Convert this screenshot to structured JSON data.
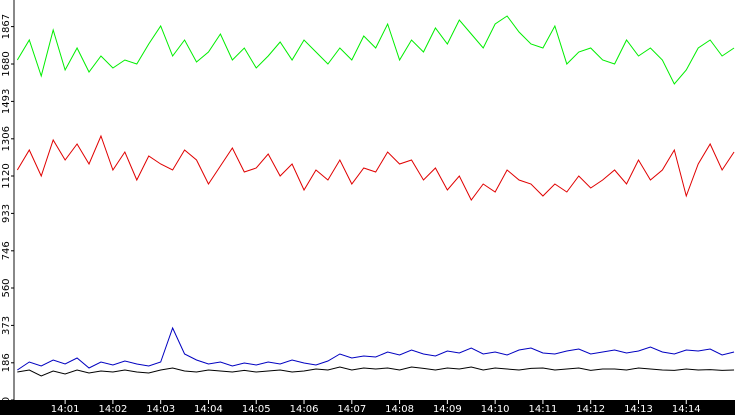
{
  "chart_data": {
    "type": "line",
    "x": [
      840,
      840.25,
      840.5,
      840.75,
      841,
      841.25,
      841.5,
      841.75,
      842,
      842.25,
      842.5,
      842.75,
      843,
      843.25,
      843.5,
      843.75,
      844,
      844.25,
      844.5,
      844.75,
      845,
      845.25,
      845.5,
      845.75,
      846,
      846.25,
      846.5,
      846.75,
      847,
      847.25,
      847.5,
      847.75,
      848,
      848.25,
      848.5,
      848.75,
      849,
      849.25,
      849.5,
      849.75,
      850,
      850.25,
      850.5,
      850.75,
      851,
      851.25,
      851.5,
      851.75,
      852,
      852.25,
      852.5,
      852.75,
      853,
      853.25,
      853.5,
      853.75,
      854,
      854.25,
      854.5,
      854.75,
      855
    ],
    "series": [
      {
        "color": "#00ee00",
        "values": [
          1700,
          1800,
          1620,
          1850,
          1650,
          1760,
          1640,
          1720,
          1660,
          1700,
          1680,
          1780,
          1870,
          1720,
          1800,
          1690,
          1740,
          1830,
          1700,
          1760,
          1660,
          1720,
          1790,
          1700,
          1800,
          1740,
          1680,
          1760,
          1700,
          1820,
          1760,
          1880,
          1700,
          1800,
          1740,
          1860,
          1780,
          1900,
          1830,
          1760,
          1880,
          1920,
          1840,
          1780,
          1760,
          1870,
          1680,
          1740,
          1760,
          1700,
          1680,
          1800,
          1720,
          1760,
          1700,
          1580,
          1650,
          1760,
          1800,
          1720,
          1760
        ]
      },
      {
        "color": "#e00000",
        "values": [
          1150,
          1250,
          1120,
          1300,
          1200,
          1280,
          1180,
          1320,
          1150,
          1240,
          1100,
          1220,
          1180,
          1150,
          1250,
          1200,
          1080,
          1170,
          1260,
          1140,
          1160,
          1230,
          1120,
          1180,
          1050,
          1150,
          1100,
          1200,
          1080,
          1160,
          1140,
          1240,
          1180,
          1200,
          1100,
          1160,
          1050,
          1120,
          1000,
          1080,
          1040,
          1150,
          1100,
          1080,
          1020,
          1080,
          1040,
          1120,
          1060,
          1100,
          1150,
          1080,
          1200,
          1100,
          1150,
          1250,
          1020,
          1180,
          1280,
          1150,
          1240
        ]
      },
      {
        "color": "#0000c0",
        "values": [
          150,
          190,
          170,
          200,
          180,
          210,
          160,
          190,
          175,
          195,
          180,
          170,
          190,
          360,
          230,
          200,
          180,
          190,
          170,
          185,
          175,
          190,
          180,
          200,
          185,
          175,
          195,
          230,
          210,
          220,
          215,
          240,
          225,
          250,
          230,
          220,
          245,
          235,
          260,
          230,
          240,
          225,
          250,
          260,
          235,
          230,
          245,
          255,
          230,
          240,
          250,
          235,
          245,
          265,
          240,
          230,
          250,
          245,
          255,
          225,
          240
        ]
      },
      {
        "color": "#000000",
        "values": [
          140,
          150,
          120,
          145,
          130,
          150,
          135,
          145,
          140,
          150,
          140,
          135,
          150,
          160,
          145,
          140,
          150,
          145,
          140,
          148,
          140,
          145,
          150,
          140,
          145,
          155,
          150,
          165,
          150,
          160,
          155,
          160,
          150,
          165,
          158,
          150,
          160,
          155,
          165,
          150,
          160,
          155,
          150,
          158,
          160,
          150,
          155,
          160,
          148,
          155,
          155,
          150,
          160,
          155,
          150,
          148,
          155,
          150,
          152,
          148,
          150
        ]
      }
    ],
    "xlim": [
      839.93,
      855.02
    ],
    "xticks": [
      {
        "value": 841,
        "label": "14:01"
      },
      {
        "value": 842,
        "label": "14:02"
      },
      {
        "value": 843,
        "label": "14:03"
      },
      {
        "value": 844,
        "label": "14:04"
      },
      {
        "value": 845,
        "label": "14:05"
      },
      {
        "value": 846,
        "label": "14:06"
      },
      {
        "value": 847,
        "label": "14:07"
      },
      {
        "value": 848,
        "label": "14:08"
      },
      {
        "value": 849,
        "label": "14:09"
      },
      {
        "value": 850,
        "label": "14:10"
      },
      {
        "value": 851,
        "label": "14:11"
      },
      {
        "value": 852,
        "label": "14:12"
      },
      {
        "value": 853,
        "label": "14:13"
      },
      {
        "value": 854,
        "label": "14:14"
      }
    ],
    "ylim": [
      0,
      2000
    ],
    "yticks": [
      0,
      186,
      373,
      560,
      746,
      933,
      1120,
      1306,
      1493,
      1680,
      1867
    ]
  }
}
